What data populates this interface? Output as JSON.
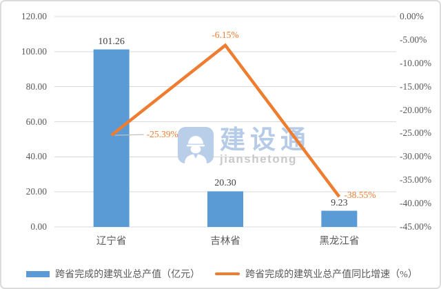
{
  "chart_data": {
    "type": "combo-bar-line",
    "categories": [
      "辽宁省",
      "吉林省",
      "黑龙江省"
    ],
    "series": [
      {
        "name": "跨省完成的建筑业总产值（亿元）",
        "type": "bar",
        "axis": "left",
        "values": [
          101.26,
          20.3,
          9.23
        ],
        "labels": [
          "101.26",
          "20.30",
          "9.23"
        ],
        "color": "#5B9BD5"
      },
      {
        "name": "跨省完成的建筑业总产值同比增速（%）",
        "type": "line",
        "axis": "right",
        "values": [
          -25.39,
          -6.15,
          -38.55
        ],
        "labels": [
          "-25.39%",
          "-6.15%",
          "-38.55%"
        ],
        "color": "#ED7D31"
      }
    ],
    "left_axis": {
      "min": 0,
      "max": 120,
      "step": 20,
      "ticks": [
        "120.00",
        "100.00",
        "80.00",
        "60.00",
        "40.00",
        "20.00",
        "0.00"
      ]
    },
    "right_axis": {
      "min": -45,
      "max": 0,
      "step": 5,
      "ticks": [
        "0.00%",
        "-5.00%",
        "-10.00%",
        "-15.00%",
        "-20.00%",
        "-25.00%",
        "-30.00%",
        "-35.00%",
        "-40.00%",
        "-45.00%"
      ]
    },
    "grid": true,
    "legend_position": "bottom"
  },
  "legend": {
    "items": [
      {
        "label": "跨省完成的建筑业总产值（亿元）",
        "swatch": "bar-swatch",
        "color": "#5B9BD5"
      },
      {
        "label": "跨省完成的建筑业总产值同比增速（%）",
        "swatch": "line-swatch",
        "color": "#ED7D31"
      }
    ]
  },
  "watermark": {
    "icon": "construction-worker-icon",
    "brand": "建设通",
    "subtitle": "jianshetong"
  },
  "colors": {
    "bar": "#5B9BD5",
    "line": "#ED7D31",
    "gridline": "#D9D9D9",
    "axis_text": "#595959",
    "bar_label": "#404040",
    "line_label": "#ED7D31",
    "leader_line": "#BFBFBF",
    "watermark_blue": "#B5CBE7",
    "watermark_gray": "#C9C9C9",
    "card_border": "#DCDCDC",
    "background": "#FFFFFF"
  }
}
